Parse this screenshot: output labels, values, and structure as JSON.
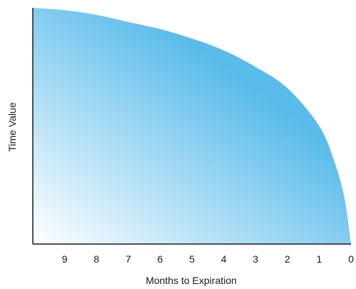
{
  "chart_data": {
    "type": "area",
    "title": "",
    "xlabel": "Months to Expiration",
    "ylabel": "Time Value",
    "x_reversed": true,
    "xlim": [
      10,
      0
    ],
    "ylim": [
      0,
      1
    ],
    "x_ticks": [
      "9",
      "8",
      "7",
      "6",
      "5",
      "4",
      "3",
      "2",
      "1",
      "0"
    ],
    "grid": false,
    "legend": "none",
    "series": [
      {
        "x": [
          10,
          9,
          8,
          7,
          6,
          5,
          4,
          3,
          2,
          1,
          0.5,
          0.2,
          0
        ],
        "values": [
          1.0,
          0.99,
          0.97,
          0.94,
          0.91,
          0.87,
          0.82,
          0.75,
          0.66,
          0.5,
          0.34,
          0.19,
          0.0
        ]
      }
    ],
    "colors": {
      "fill_start": "#ffffff",
      "fill_end": "#58bbea",
      "axis": "#1a1a1a"
    }
  }
}
